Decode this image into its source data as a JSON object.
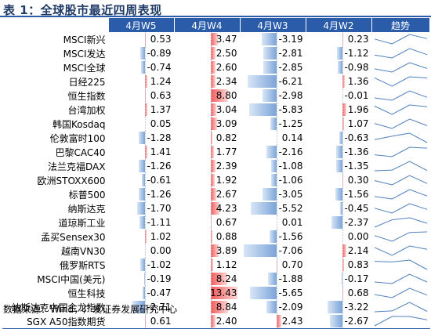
{
  "title": "表 1：全球股市最近四周表现",
  "source": "数据来源：Wind，广发证券发展研究中心",
  "columns": [
    "4月W5",
    "4月W4",
    "4月W3",
    "4月W2",
    "趋势"
  ],
  "rows": [
    {
      "name": "MSCI新兴",
      "values": [
        0.53,
        3.47,
        -3.19,
        0.23
      ]
    },
    {
      "name": "MSCI发达",
      "values": [
        -0.89,
        2.5,
        -2.81,
        -1.12
      ]
    },
    {
      "name": "MSCI全球",
      "values": [
        -0.74,
        2.6,
        -2.85,
        -0.98
      ]
    },
    {
      "name": "日经225",
      "values": [
        1.24,
        2.34,
        -6.21,
        1.36
      ]
    },
    {
      "name": "恒生指数",
      "values": [
        0.63,
        8.8,
        -2.98,
        -0.01
      ]
    },
    {
      "name": "台湾加权",
      "values": [
        1.37,
        3.04,
        -5.83,
        1.96
      ]
    },
    {
      "name": "韩国Kosdaq",
      "values": [
        0.05,
        3.09,
        -1.25,
        1.07
      ]
    },
    {
      "name": "伦敦富时100",
      "values": [
        -1.28,
        0.82,
        0.14,
        -0.63
      ]
    },
    {
      "name": "巴黎CAC40",
      "values": [
        1.41,
        1.77,
        -2.16,
        -1.36
      ]
    },
    {
      "name": "法兰克福DAX",
      "values": [
        -1.26,
        2.39,
        -1.08,
        -1.35
      ]
    },
    {
      "name": "欧洲STOXX600",
      "values": [
        -0.61,
        1.92,
        -1.06,
        0.3
      ]
    },
    {
      "name": "标普500",
      "values": [
        -1.26,
        2.67,
        -3.05,
        -1.56
      ]
    },
    {
      "name": "纳斯达克",
      "values": [
        -1.7,
        4.23,
        -5.52,
        -0.45
      ]
    },
    {
      "name": "道琼斯工业",
      "values": [
        -1.11,
        0.67,
        0.01,
        -2.37
      ]
    },
    {
      "name": "孟买Sensex30",
      "values": [
        1.02,
        0.88,
        -1.56,
        0.0
      ]
    },
    {
      "name": "越南VN30",
      "values": [
        0.0,
        3.89,
        -7.06,
        2.14
      ]
    },
    {
      "name": "俄罗斯RTS",
      "values": [
        -1.02,
        1.12,
        0.7,
        0.83
      ]
    },
    {
      "name": "MSCI中国(美元)",
      "values": [
        -0.19,
        8.24,
        -1.88,
        -0.17
      ]
    },
    {
      "name": "恒生科技",
      "values": [
        -0.47,
        13.43,
        -5.65,
        0.68
      ]
    },
    {
      "name": "纳斯达克中国金龙指数",
      "values": [
        -2.71,
        8.84,
        -2.09,
        -3.22
      ]
    },
    {
      "name": "SGX A50指数期货",
      "values": [
        0.61,
        2.4,
        2.43,
        -2.67
      ]
    }
  ],
  "colors": {
    "header": "#2a5caa",
    "positive": "#f25a5a",
    "negative": "#7ba3d8",
    "spark": "#4f81bd"
  }
}
